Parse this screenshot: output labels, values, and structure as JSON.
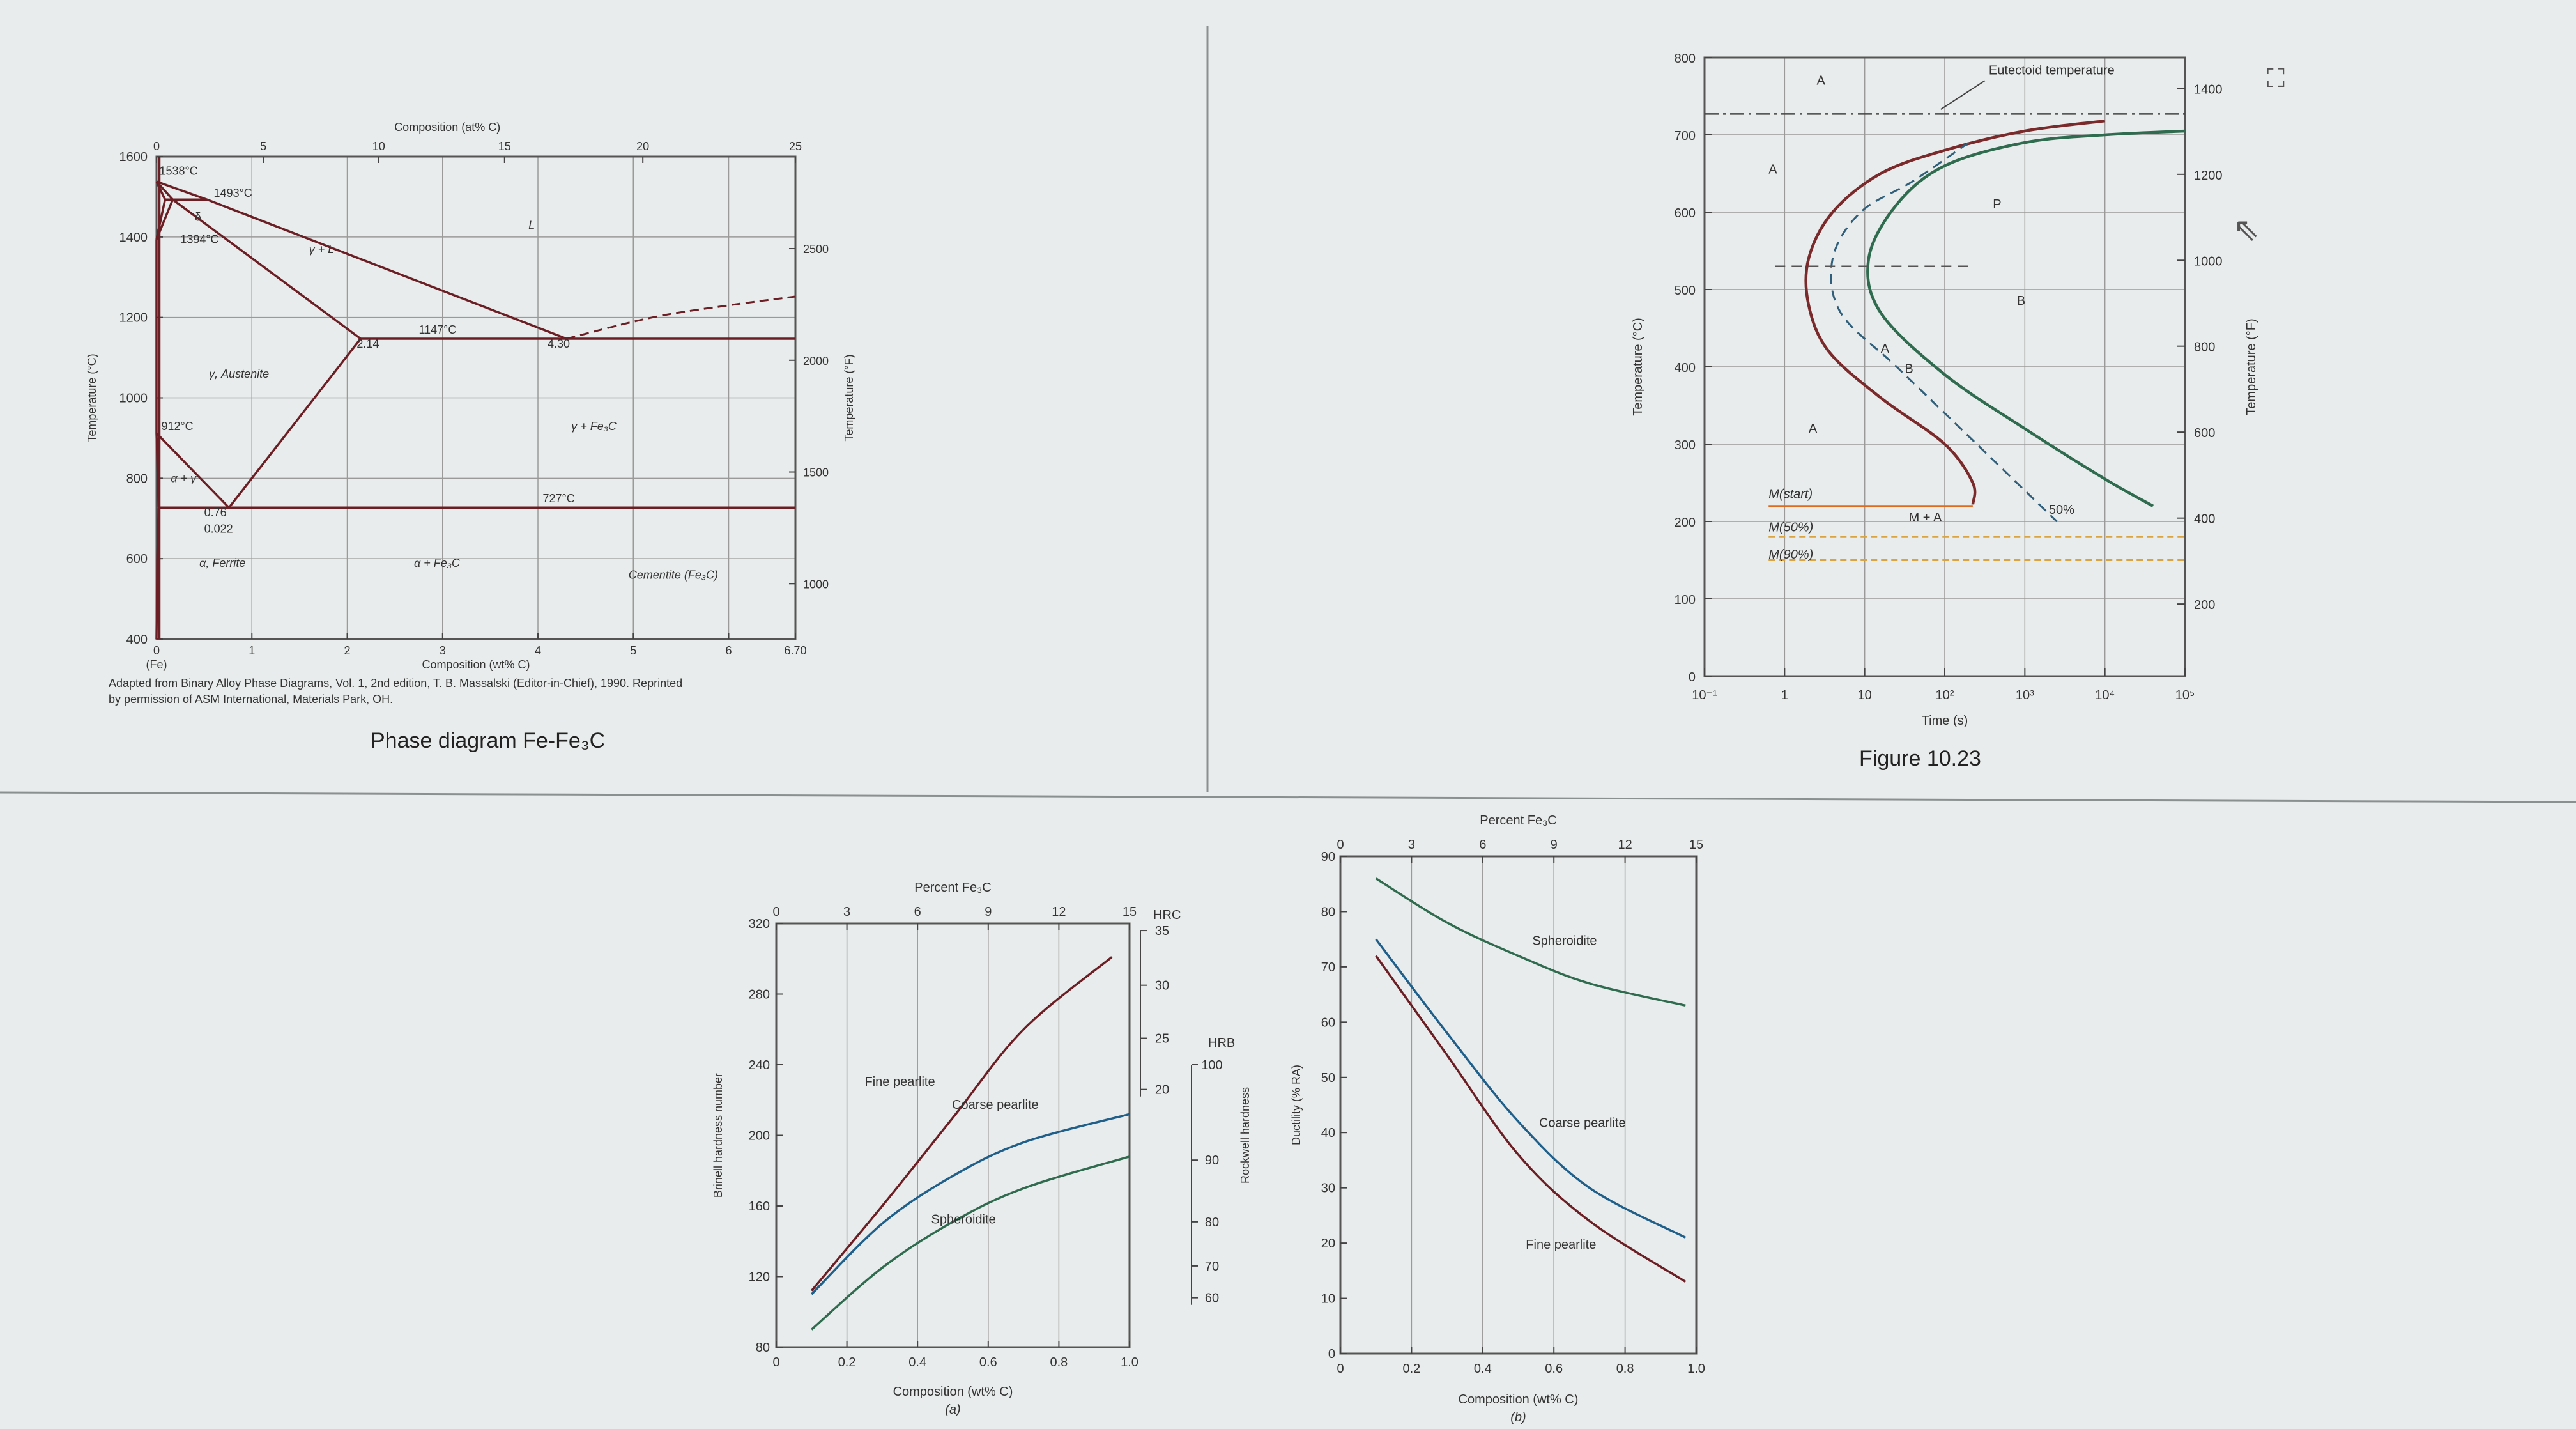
{
  "phase": {
    "caption": "Phase diagram Fe-Fe₃C",
    "chart_data": {
      "type": "line",
      "xlabel_bottom": "Composition (wt% C)",
      "xlabel_top": "Composition (at% C)",
      "ylabel_left": "Temperature (°C)",
      "ylabel_right": "Temperature (°F)",
      "xlim": [
        0,
        6.7
      ],
      "ylim": [
        400,
        1600
      ],
      "xticks": [
        "0",
        "1",
        "2",
        "3",
        "4",
        "5",
        "6",
        "6.70"
      ],
      "yticks": [
        "400",
        "600",
        "800",
        "1000",
        "1200",
        "1400",
        "1600"
      ],
      "topticks": [
        {
          "v": 0,
          "at": 0
        },
        {
          "v": 1.12,
          "at": 5
        },
        {
          "v": 2.33,
          "at": 10
        },
        {
          "v": 3.65,
          "at": 15
        },
        {
          "v": 5.1,
          "at": 20
        },
        {
          "v": 6.7,
          "at": 25
        }
      ],
      "topticklabels": [
        "0",
        "5",
        "10",
        "15",
        "20",
        "25"
      ],
      "rightticks": [
        {
          "f": 1000,
          "c": 537.8
        },
        {
          "f": 1500,
          "c": 815.6
        },
        {
          "f": 2000,
          "c": 1093.3
        },
        {
          "f": 2500,
          "c": 1371.1
        }
      ],
      "rightticklabels": [
        "1000",
        "1500",
        "2000",
        "2500"
      ],
      "x_sub": "(Fe)",
      "series": [
        {
          "color": "#6b1f24",
          "points": [
            [
              0,
              1538
            ],
            [
              0.53,
              1493
            ]
          ]
        },
        {
          "color": "#6b1f24",
          "points": [
            [
              0.53,
              1493
            ],
            [
              4.3,
              1147
            ]
          ]
        },
        {
          "color": "#6b1f24",
          "points": [
            [
              0.53,
              1493
            ],
            [
              0.09,
              1493
            ]
          ]
        },
        {
          "color": "#6b1f24",
          "points": [
            [
              0,
              1538
            ],
            [
              0.09,
              1493
            ]
          ]
        },
        {
          "color": "#6b1f24",
          "points": [
            [
              0,
              1538
            ],
            [
              0.17,
              1493
            ]
          ]
        },
        {
          "color": "#6b1f24",
          "points": [
            [
              0.09,
              1493
            ],
            [
              0,
              1394
            ]
          ]
        },
        {
          "color": "#6b1f24",
          "points": [
            [
              0.17,
              1493
            ],
            [
              0,
              1394
            ]
          ]
        },
        {
          "color": "#6b1f24",
          "points": [
            [
              0,
              1394
            ],
            [
              0,
              912
            ]
          ]
        },
        {
          "color": "#6b1f24",
          "points": [
            [
              0.17,
              1493
            ],
            [
              2.14,
              1147
            ]
          ]
        },
        {
          "color": "#6b1f24",
          "points": [
            [
              2.14,
              1147
            ],
            [
              0.76,
              727
            ]
          ]
        },
        {
          "color": "#6b1f24",
          "points": [
            [
              0,
              912
            ],
            [
              0.76,
              727
            ]
          ]
        },
        {
          "color": "#6b1f24",
          "points": [
            [
              0,
              912
            ],
            [
              0.022,
              727
            ]
          ]
        },
        {
          "color": "#6b1f24",
          "points": [
            [
              0.022,
              727
            ],
            [
              0.008,
              600
            ],
            [
              0,
              400
            ]
          ]
        },
        {
          "color": "#6b1f24",
          "points": [
            [
              2.14,
              1147
            ],
            [
              6.7,
              1147
            ]
          ]
        },
        {
          "color": "#6b1f24",
          "points": [
            [
              0.022,
              727
            ],
            [
              6.7,
              727
            ]
          ]
        },
        {
          "color": "#6b1f24",
          "points": [
            [
              0.03,
              400
            ],
            [
              0.03,
              1600
            ]
          ]
        }
      ],
      "dashed": [
        [
          4.3,
          1147
        ],
        [
          5.2,
          1200
        ],
        [
          6.0,
          1230
        ],
        [
          6.7,
          1252
        ]
      ],
      "point_labels": [
        {
          "text": "1538°C",
          "x": 0.03,
          "y": 1555
        },
        {
          "text": "1493°C",
          "x": 0.6,
          "y": 1500
        },
        {
          "text": "1394°C",
          "x": 0.25,
          "y": 1385
        },
        {
          "text": "912°C",
          "x": 0.05,
          "y": 920
        },
        {
          "text": "1147°C",
          "x": 2.75,
          "y": 1160
        },
        {
          "text": "727°C",
          "x": 4.05,
          "y": 740
        },
        {
          "text": "2.14",
          "x": 2.1,
          "y": 1125
        },
        {
          "text": "4.30",
          "x": 4.1,
          "y": 1125
        },
        {
          "text": "0.76",
          "x": 0.5,
          "y": 705
        },
        {
          "text": "0.022",
          "x": 0.5,
          "y": 665
        },
        {
          "text": "δ",
          "x": 0.4,
          "y": 1440
        }
      ],
      "regions": [
        {
          "text": "L",
          "x": 3.9,
          "y": 1420
        },
        {
          "text": "γ + L",
          "x": 1.6,
          "y": 1360
        },
        {
          "text": "γ, Austenite",
          "x": 0.55,
          "y": 1050
        },
        {
          "text": "γ + Fe₃C",
          "x": 4.35,
          "y": 920
        },
        {
          "text": "α + Fe₃C",
          "x": 2.7,
          "y": 580
        },
        {
          "text": "α, Ferrite",
          "x": 0.45,
          "y": 580
        },
        {
          "text": "Cementite (Fe₃C)",
          "x": 4.95,
          "y": 550
        },
        {
          "text": "α + γ",
          "x": 0.15,
          "y": 790
        }
      ],
      "credit_line1": "Adapted from Binary Alloy Phase Diagrams, Vol. 1, 2nd edition, T. B. Massalski (Editor-in-Chief), 1990. Reprinted",
      "credit_line2": "by permission of ASM International, Materials Park, OH."
    }
  },
  "ttt": {
    "caption": "Figure 10.23",
    "chart_data": {
      "type": "line",
      "xlabel": "Time (s)",
      "ylabel_left": "Temperature (°C)",
      "ylabel_right": "Temperature (°F)",
      "xscale": "log",
      "xlim": [
        -1,
        5
      ],
      "ylim": [
        0,
        800
      ],
      "xticks": [
        {
          "v": -1,
          "t": "10⁻¹"
        },
        {
          "v": 0,
          "t": "1"
        },
        {
          "v": 1,
          "t": "10"
        },
        {
          "v": 2,
          "t": "10²"
        },
        {
          "v": 3,
          "t": "10³"
        },
        {
          "v": 4,
          "t": "10⁴"
        },
        {
          "v": 5,
          "t": "10⁵"
        }
      ],
      "yticks": [
        "0",
        "100",
        "200",
        "300",
        "400",
        "500",
        "600",
        "700",
        "800"
      ],
      "rightticks": [
        {
          "f": 200,
          "c": 93.3
        },
        {
          "f": 400,
          "c": 204.4
        },
        {
          "f": 600,
          "c": 315.6
        },
        {
          "f": 800,
          "c": 426.7
        },
        {
          "f": 1000,
          "c": 537.8
        },
        {
          "f": 1200,
          "c": 648.9
        },
        {
          "f": 1400,
          "c": 760
        }
      ],
      "rightticklabels": [
        "200",
        "400",
        "600",
        "800",
        "1000",
        "1200",
        "1400"
      ],
      "eutectoid_label": "Eutectoid temperature",
      "eutectoid_temp": 727,
      "series": [
        {
          "name": "start",
          "color": "#7a2a2a",
          "points": [
            [
              4.0,
              718
            ],
            [
              3.0,
              705
            ],
            [
              2.0,
              680
            ],
            [
              1.2,
              650
            ],
            [
              0.6,
              600
            ],
            [
              0.3,
              540
            ],
            [
              0.3,
              480
            ],
            [
              0.55,
              420
            ],
            [
              1.2,
              360
            ],
            [
              2.0,
              300
            ],
            [
              2.35,
              250
            ],
            [
              2.35,
              222
            ]
          ]
        },
        {
          "name": "end",
          "color": "#2f6b4f",
          "points": [
            [
              5.0,
              705
            ],
            [
              4.0,
              700
            ],
            [
              3.0,
              690
            ],
            [
              2.0,
              660
            ],
            [
              1.4,
              610
            ],
            [
              1.05,
              540
            ],
            [
              1.2,
              470
            ],
            [
              2.0,
              390
            ],
            [
              3.0,
              320
            ],
            [
              4.0,
              255
            ],
            [
              4.6,
              220
            ]
          ]
        },
        {
          "name": "50%",
          "color": "#2f5f7a",
          "dashed": true,
          "points": [
            [
              2.3,
              690
            ],
            [
              1.6,
              640
            ],
            [
              0.95,
              600
            ],
            [
              0.6,
              540
            ],
            [
              0.7,
              470
            ],
            [
              1.4,
              400
            ],
            [
              2.2,
              320
            ],
            [
              2.7,
              270
            ],
            [
              3.1,
              230
            ],
            [
              3.4,
              200
            ]
          ]
        }
      ],
      "horizontals": [
        {
          "name": "M(start)",
          "temp": 220,
          "color": "#e06a1e",
          "dashed": false,
          "from": -0.2,
          "to": 2.35
        },
        {
          "name": "M(50%)",
          "temp": 180,
          "color": "#d9a441",
          "dashed": true,
          "from": -0.2,
          "to": 5
        },
        {
          "name": "M(90%)",
          "temp": 150,
          "color": "#d9a441",
          "dashed": true,
          "from": -0.2,
          "to": 5
        }
      ],
      "labels": [
        {
          "text": "A",
          "x": 0.4,
          "y": 765
        },
        {
          "text": "A",
          "x": -0.2,
          "y": 650
        },
        {
          "text": "P",
          "x": 2.6,
          "y": 605
        },
        {
          "text": "B",
          "x": 2.9,
          "y": 480
        },
        {
          "text": "A",
          "x": 0.3,
          "y": 315
        },
        {
          "text": "M(start)",
          "x": -0.2,
          "y": 230
        },
        {
          "text": "M(50%)",
          "x": -0.2,
          "y": 187
        },
        {
          "text": "M(90%)",
          "x": -0.2,
          "y": 152
        },
        {
          "text": "M + A",
          "x": 1.55,
          "y": 200
        },
        {
          "text": "50%",
          "x": 3.3,
          "y": 210
        },
        {
          "text": "A",
          "x": 1.2,
          "y": 418
        },
        {
          "text": "B",
          "x": 1.5,
          "y": 392
        }
      ]
    }
  },
  "hardness": {
    "subtitle": "(a)",
    "chart_data": {
      "type": "line",
      "xlabel": "Composition (wt% C)",
      "xlabel_top": "Percent Fe₃C",
      "ylabel": "Brinell hardness number",
      "ylabel_right": "Rockwell hardness",
      "xlim": [
        0,
        1.0
      ],
      "ylim": [
        80,
        320
      ],
      "xticks": [
        "0",
        "0.2",
        "0.4",
        "0.6",
        "0.8",
        "1.0"
      ],
      "yticks": [
        "80",
        "120",
        "160",
        "200",
        "240",
        "280",
        "320"
      ],
      "topticks": [
        {
          "v": 0,
          "t": "0"
        },
        {
          "v": 0.2,
          "t": "3"
        },
        {
          "v": 0.4,
          "t": "6"
        },
        {
          "v": 0.6,
          "t": "9"
        },
        {
          "v": 0.8,
          "t": "12"
        },
        {
          "v": 1.0,
          "t": "15"
        }
      ],
      "hrc_label": "HRC",
      "hrc_ticks": [
        {
          "b": 316,
          "t": "35"
        },
        {
          "b": 285,
          "t": "30"
        },
        {
          "b": 255,
          "t": "25"
        },
        {
          "b": 226,
          "t": "20"
        }
      ],
      "hrb_label": "HRB",
      "hrb_ticks": [
        {
          "b": 240,
          "t": "100"
        },
        {
          "b": 186,
          "t": "90"
        },
        {
          "b": 151,
          "t": "80"
        },
        {
          "b": 126,
          "t": "70"
        },
        {
          "b": 108,
          "t": "60"
        }
      ],
      "series": [
        {
          "name": "Fine pearlite",
          "color": "#6b1f24",
          "points": [
            [
              0.1,
              112
            ],
            [
              0.3,
              160
            ],
            [
              0.5,
              210
            ],
            [
              0.7,
              260
            ],
            [
              0.95,
              301
            ]
          ]
        },
        {
          "name": "Coarse pearlite",
          "color": "#1f5f8a",
          "points": [
            [
              0.1,
              110
            ],
            [
              0.3,
              150
            ],
            [
              0.5,
              177
            ],
            [
              0.7,
              196
            ],
            [
              1.0,
              212
            ]
          ]
        },
        {
          "name": "Spheroidite",
          "color": "#2f6b4f",
          "points": [
            [
              0.1,
              90
            ],
            [
              0.3,
              125
            ],
            [
              0.5,
              151
            ],
            [
              0.7,
              170
            ],
            [
              1.0,
              188
            ]
          ]
        }
      ],
      "labels": [
        {
          "text": "Fine pearlite",
          "x": 0.35,
          "y": 228
        },
        {
          "text": "Coarse pearlite",
          "x": 0.62,
          "y": 215
        },
        {
          "text": "Spheroidite",
          "x": 0.53,
          "y": 150
        }
      ]
    }
  },
  "ductility": {
    "subtitle": "(b)",
    "chart_data": {
      "type": "line",
      "xlabel": "Composition (wt% C)",
      "xlabel_top": "Percent Fe₃C",
      "ylabel": "Ductility (% RA)",
      "xlim": [
        0,
        1.0
      ],
      "ylim": [
        0,
        90
      ],
      "xticks": [
        "0",
        "0.2",
        "0.4",
        "0.6",
        "0.8",
        "1.0"
      ],
      "yticks": [
        "0",
        "10",
        "20",
        "30",
        "40",
        "50",
        "60",
        "70",
        "80",
        "90"
      ],
      "topticks": [
        {
          "v": 0,
          "t": "0"
        },
        {
          "v": 0.2,
          "t": "3"
        },
        {
          "v": 0.4,
          "t": "6"
        },
        {
          "v": 0.6,
          "t": "9"
        },
        {
          "v": 0.8,
          "t": "12"
        },
        {
          "v": 1.0,
          "t": "15"
        }
      ],
      "series": [
        {
          "name": "Spheroidite",
          "color": "#2f6b4f",
          "points": [
            [
              0.1,
              86
            ],
            [
              0.3,
              78
            ],
            [
              0.5,
              72
            ],
            [
              0.7,
              67
            ],
            [
              0.97,
              63
            ]
          ]
        },
        {
          "name": "Coarse pearlite",
          "color": "#1f5f8a",
          "points": [
            [
              0.1,
              75
            ],
            [
              0.3,
              58
            ],
            [
              0.5,
              42
            ],
            [
              0.7,
              30
            ],
            [
              0.97,
              21
            ]
          ]
        },
        {
          "name": "Fine pearlite",
          "color": "#6b1f24",
          "points": [
            [
              0.1,
              72
            ],
            [
              0.3,
              54
            ],
            [
              0.5,
              36
            ],
            [
              0.7,
              24
            ],
            [
              0.97,
              13
            ]
          ]
        }
      ],
      "labels": [
        {
          "text": "Spheroidite",
          "x": 0.63,
          "y": 74
        },
        {
          "text": "Coarse pearlite",
          "x": 0.68,
          "y": 41
        },
        {
          "text": "Fine pearlite",
          "x": 0.62,
          "y": 19
        }
      ]
    }
  },
  "icons": {
    "cursor": "cursor-arrow-icon",
    "screenshot": "screenshot-icon"
  }
}
